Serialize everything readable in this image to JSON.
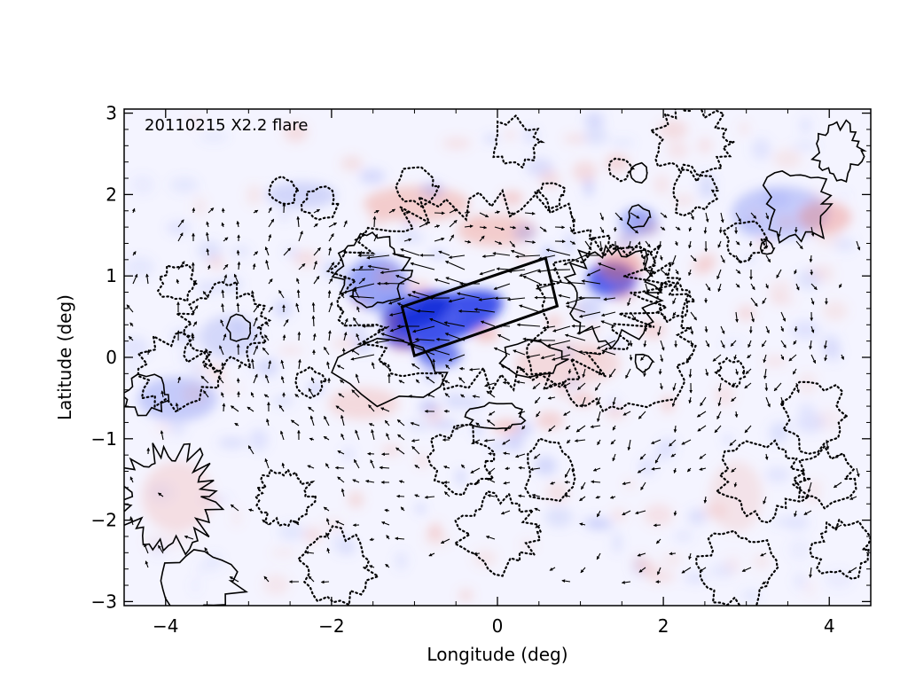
{
  "chart_data": {
    "type": "heatmap",
    "title": "",
    "annotation": "20110215  X2.2 flare",
    "xlabel": "Longitude (deg)",
    "ylabel": "Latitude (deg)",
    "xlim": [
      -4.5,
      4.5
    ],
    "ylim": [
      -3.05,
      3.05
    ],
    "x_ticks": [
      -4,
      -2,
      0,
      2,
      4
    ],
    "x_tick_labels": [
      "−4",
      "−2",
      "0",
      "2",
      "4"
    ],
    "y_ticks": [
      -3,
      -2,
      -1,
      0,
      1,
      2,
      3
    ],
    "y_tick_labels": [
      "−3",
      "−2",
      "−1",
      "0",
      "1",
      "2",
      "3"
    ],
    "colors": {
      "positive": "#e8615a",
      "negative": "#1f3fe0",
      "background": "#f4f4ff"
    },
    "contours": {
      "solid": "positive polarity contour",
      "dotted": "negative polarity contour"
    },
    "box_corners": [
      [
        -1.15,
        0.62
      ],
      [
        0.58,
        1.22
      ],
      [
        0.72,
        0.63
      ],
      [
        -1.0,
        0.02
      ]
    ],
    "vector_field": "horizontal field arrows",
    "grid": false,
    "legend": "none"
  }
}
